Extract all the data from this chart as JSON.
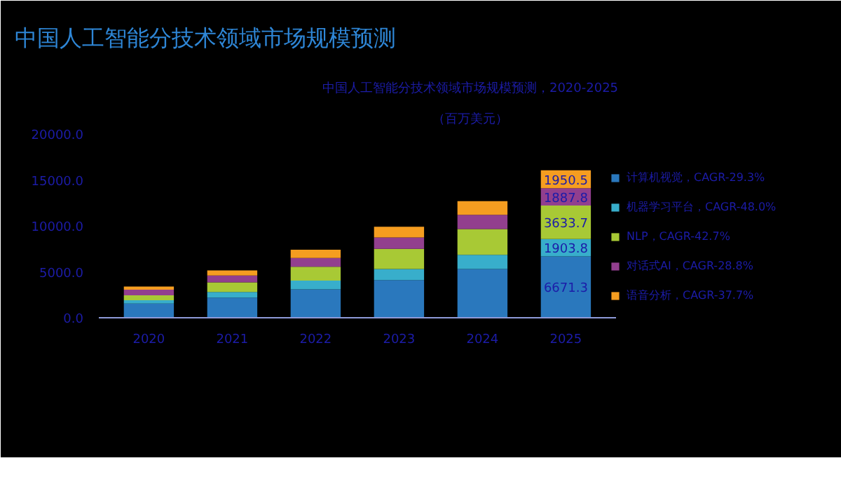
{
  "chart_data": {
    "type": "bar",
    "title": "中国人工智能分技术领域市场规模预测",
    "subtitle": "中国人工智能分技术领域市场规模预测，2020-2025",
    "ylabel": "（百万美元）",
    "categories": [
      "2020",
      "2021",
      "2022",
      "2023",
      "2024",
      "2025"
    ],
    "stacked": true,
    "ylim": [
      0,
      20000
    ],
    "yticks": [
      {
        "value": 0,
        "label": "0.0"
      },
      {
        "value": 5000,
        "label": "5000.0"
      },
      {
        "value": 10000,
        "label": "10000.0"
      },
      {
        "value": 15000,
        "label": "15000.0"
      },
      {
        "value": 20000,
        "label": "20000.0"
      }
    ],
    "grid": false,
    "legend": "right",
    "series": [
      {
        "name": "计算机视觉，CAGR-29.3%",
        "color": "#2a78bd",
        "values": [
          1550,
          2200,
          3100,
          4100,
          5300,
          6671.3
        ],
        "value_labels": [
          null,
          null,
          null,
          null,
          null,
          "6671.3"
        ]
      },
      {
        "name": "机器学习平台，CAGR-48.0%",
        "color": "#38aecb",
        "values": [
          350,
          600,
          950,
          1200,
          1550,
          1903.8
        ],
        "value_labels": [
          null,
          null,
          null,
          null,
          null,
          "1903.8"
        ]
      },
      {
        "name": "NLP，CAGR-42.7%",
        "color": "#a8c935",
        "values": [
          550,
          1050,
          1500,
          2200,
          2800,
          3633.7
        ],
        "value_labels": [
          null,
          null,
          null,
          null,
          null,
          "3633.7"
        ]
      },
      {
        "name": "对话式AI，CAGR-28.8%",
        "color": "#923f8e",
        "values": [
          600,
          750,
          950,
          1250,
          1550,
          1887.8
        ],
        "value_labels": [
          null,
          null,
          null,
          null,
          null,
          "1887.8"
        ]
      },
      {
        "name": "语音分析，CAGR-37.7%",
        "color": "#f59d20",
        "values": [
          350,
          550,
          900,
          1150,
          1500,
          1950.5
        ],
        "value_labels": [
          null,
          null,
          null,
          null,
          null,
          "1950.5"
        ]
      }
    ]
  }
}
